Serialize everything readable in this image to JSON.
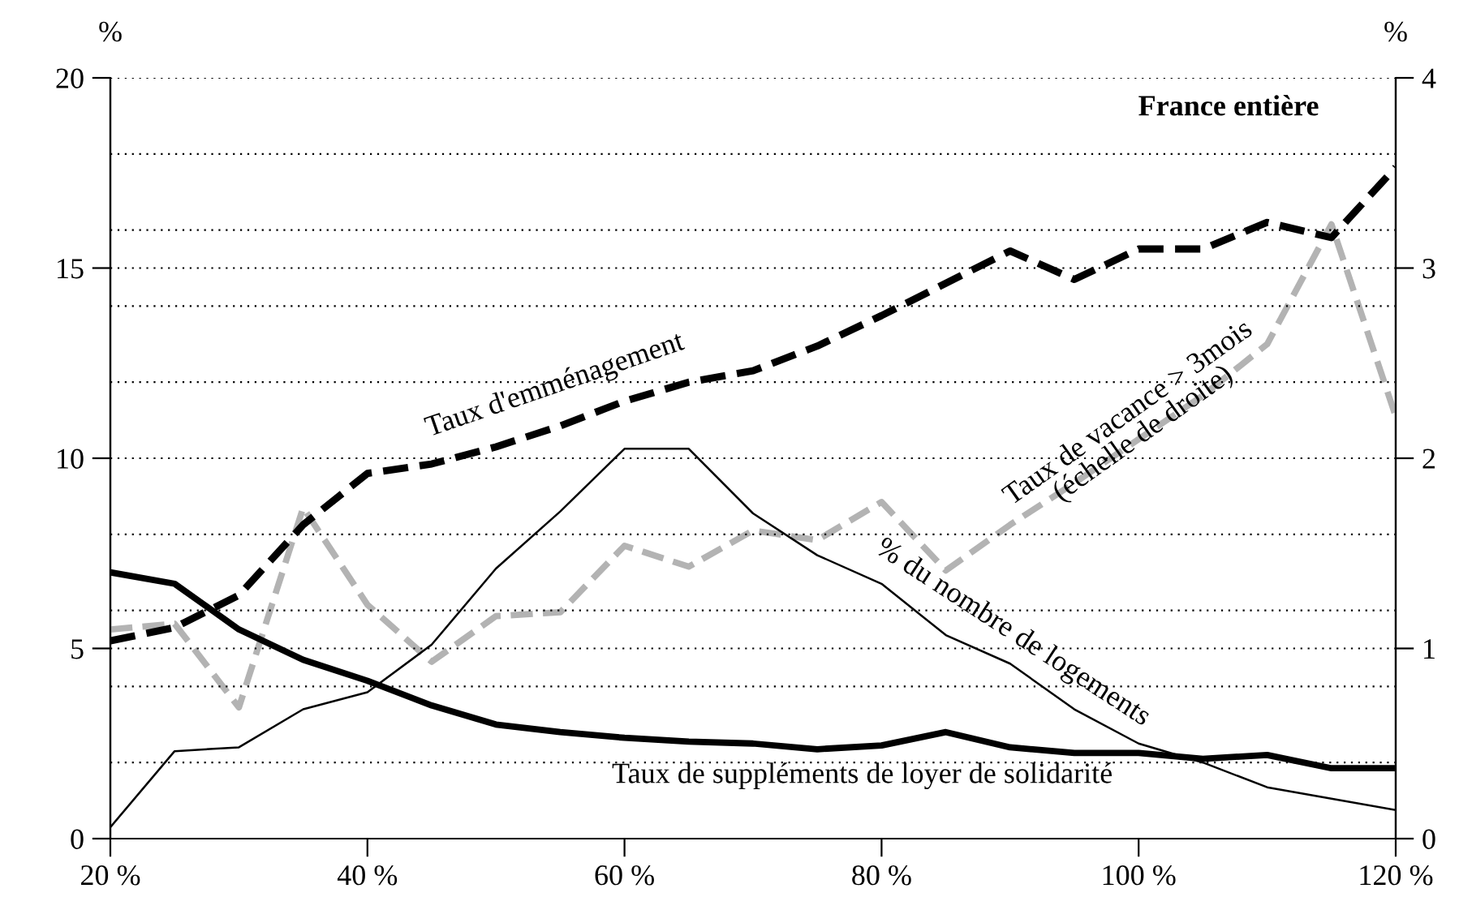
{
  "chart_data": {
    "type": "line",
    "x": [
      20,
      25,
      30,
      35,
      40,
      45,
      50,
      55,
      60,
      65,
      70,
      75,
      80,
      85,
      90,
      95,
      100,
      105,
      110,
      115,
      120
    ],
    "series": [
      {
        "name": "Taux d'emménagement",
        "color": "#000000",
        "line_style": "dashed",
        "values": [
          5.2,
          5.55,
          6.4,
          8.25,
          9.6,
          9.85,
          10.3,
          10.85,
          11.5,
          12.0,
          12.3,
          12.95,
          13.75,
          14.6,
          15.45,
          14.7,
          15.5,
          15.5,
          16.2,
          15.8,
          17.65
        ]
      },
      {
        "name": "Taux de vacance > 3mois\n(échelle de droite)",
        "color": "#b3b3b3",
        "line_style": "dashed",
        "axis": "y2",
        "values": [
          1.1,
          1.13,
          0.69,
          1.74,
          1.23,
          0.93,
          1.17,
          1.19,
          1.54,
          1.43,
          1.62,
          1.57,
          1.77,
          1.41,
          1.65,
          1.87,
          2.1,
          2.33,
          2.6,
          3.23,
          2.22
        ]
      },
      {
        "name": "% du nombre de logements",
        "color": "#000000",
        "line_style": "solid",
        "values": [
          0.3,
          2.3,
          2.4,
          3.4,
          3.85,
          5.1,
          7.1,
          8.6,
          10.25,
          10.25,
          8.55,
          7.45,
          6.7,
          5.35,
          4.6,
          3.4,
          2.5,
          2.0,
          1.35,
          1.05,
          0.75
        ]
      },
      {
        "name": "Taux de suppléments de loyer de solidarité",
        "color": "#000000",
        "line_style": "solid",
        "values": [
          7.0,
          6.7,
          5.5,
          4.7,
          4.15,
          3.5,
          3.0,
          2.8,
          2.65,
          2.55,
          2.5,
          2.35,
          2.45,
          2.8,
          2.4,
          2.25,
          2.25,
          2.1,
          2.2,
          1.85,
          1.85
        ]
      }
    ],
    "ylabel": "%",
    "y2label": "%",
    "annotations": [
      "France entière"
    ],
    "xlim": [
      20,
      120
    ],
    "xticks": [
      {
        "value": 20,
        "label": "20 %"
      },
      {
        "value": 40,
        "label": "40 %"
      },
      {
        "value": 60,
        "label": "60 %"
      },
      {
        "value": 80,
        "label": "80 %"
      },
      {
        "value": 100,
        "label": "100 %"
      },
      {
        "value": 120,
        "label": "120 %"
      }
    ],
    "ylim": [
      0,
      20
    ],
    "yticks": [
      0,
      {
        "value": 2,
        "label": null
      },
      {
        "value": 4,
        "label": null
      },
      5,
      {
        "value": 6,
        "label": null
      },
      {
        "value": 8,
        "label": null
      },
      10,
      {
        "value": 12,
        "label": null
      },
      {
        "value": 14,
        "label": null
      },
      15,
      {
        "value": 16,
        "label": null
      },
      {
        "value": 18,
        "label": null
      },
      20
    ],
    "y2lim": [
      0,
      4
    ],
    "y2ticks": [
      0,
      1,
      2,
      3,
      4
    ],
    "grid": "y",
    "legend": false,
    "marker": "none"
  }
}
